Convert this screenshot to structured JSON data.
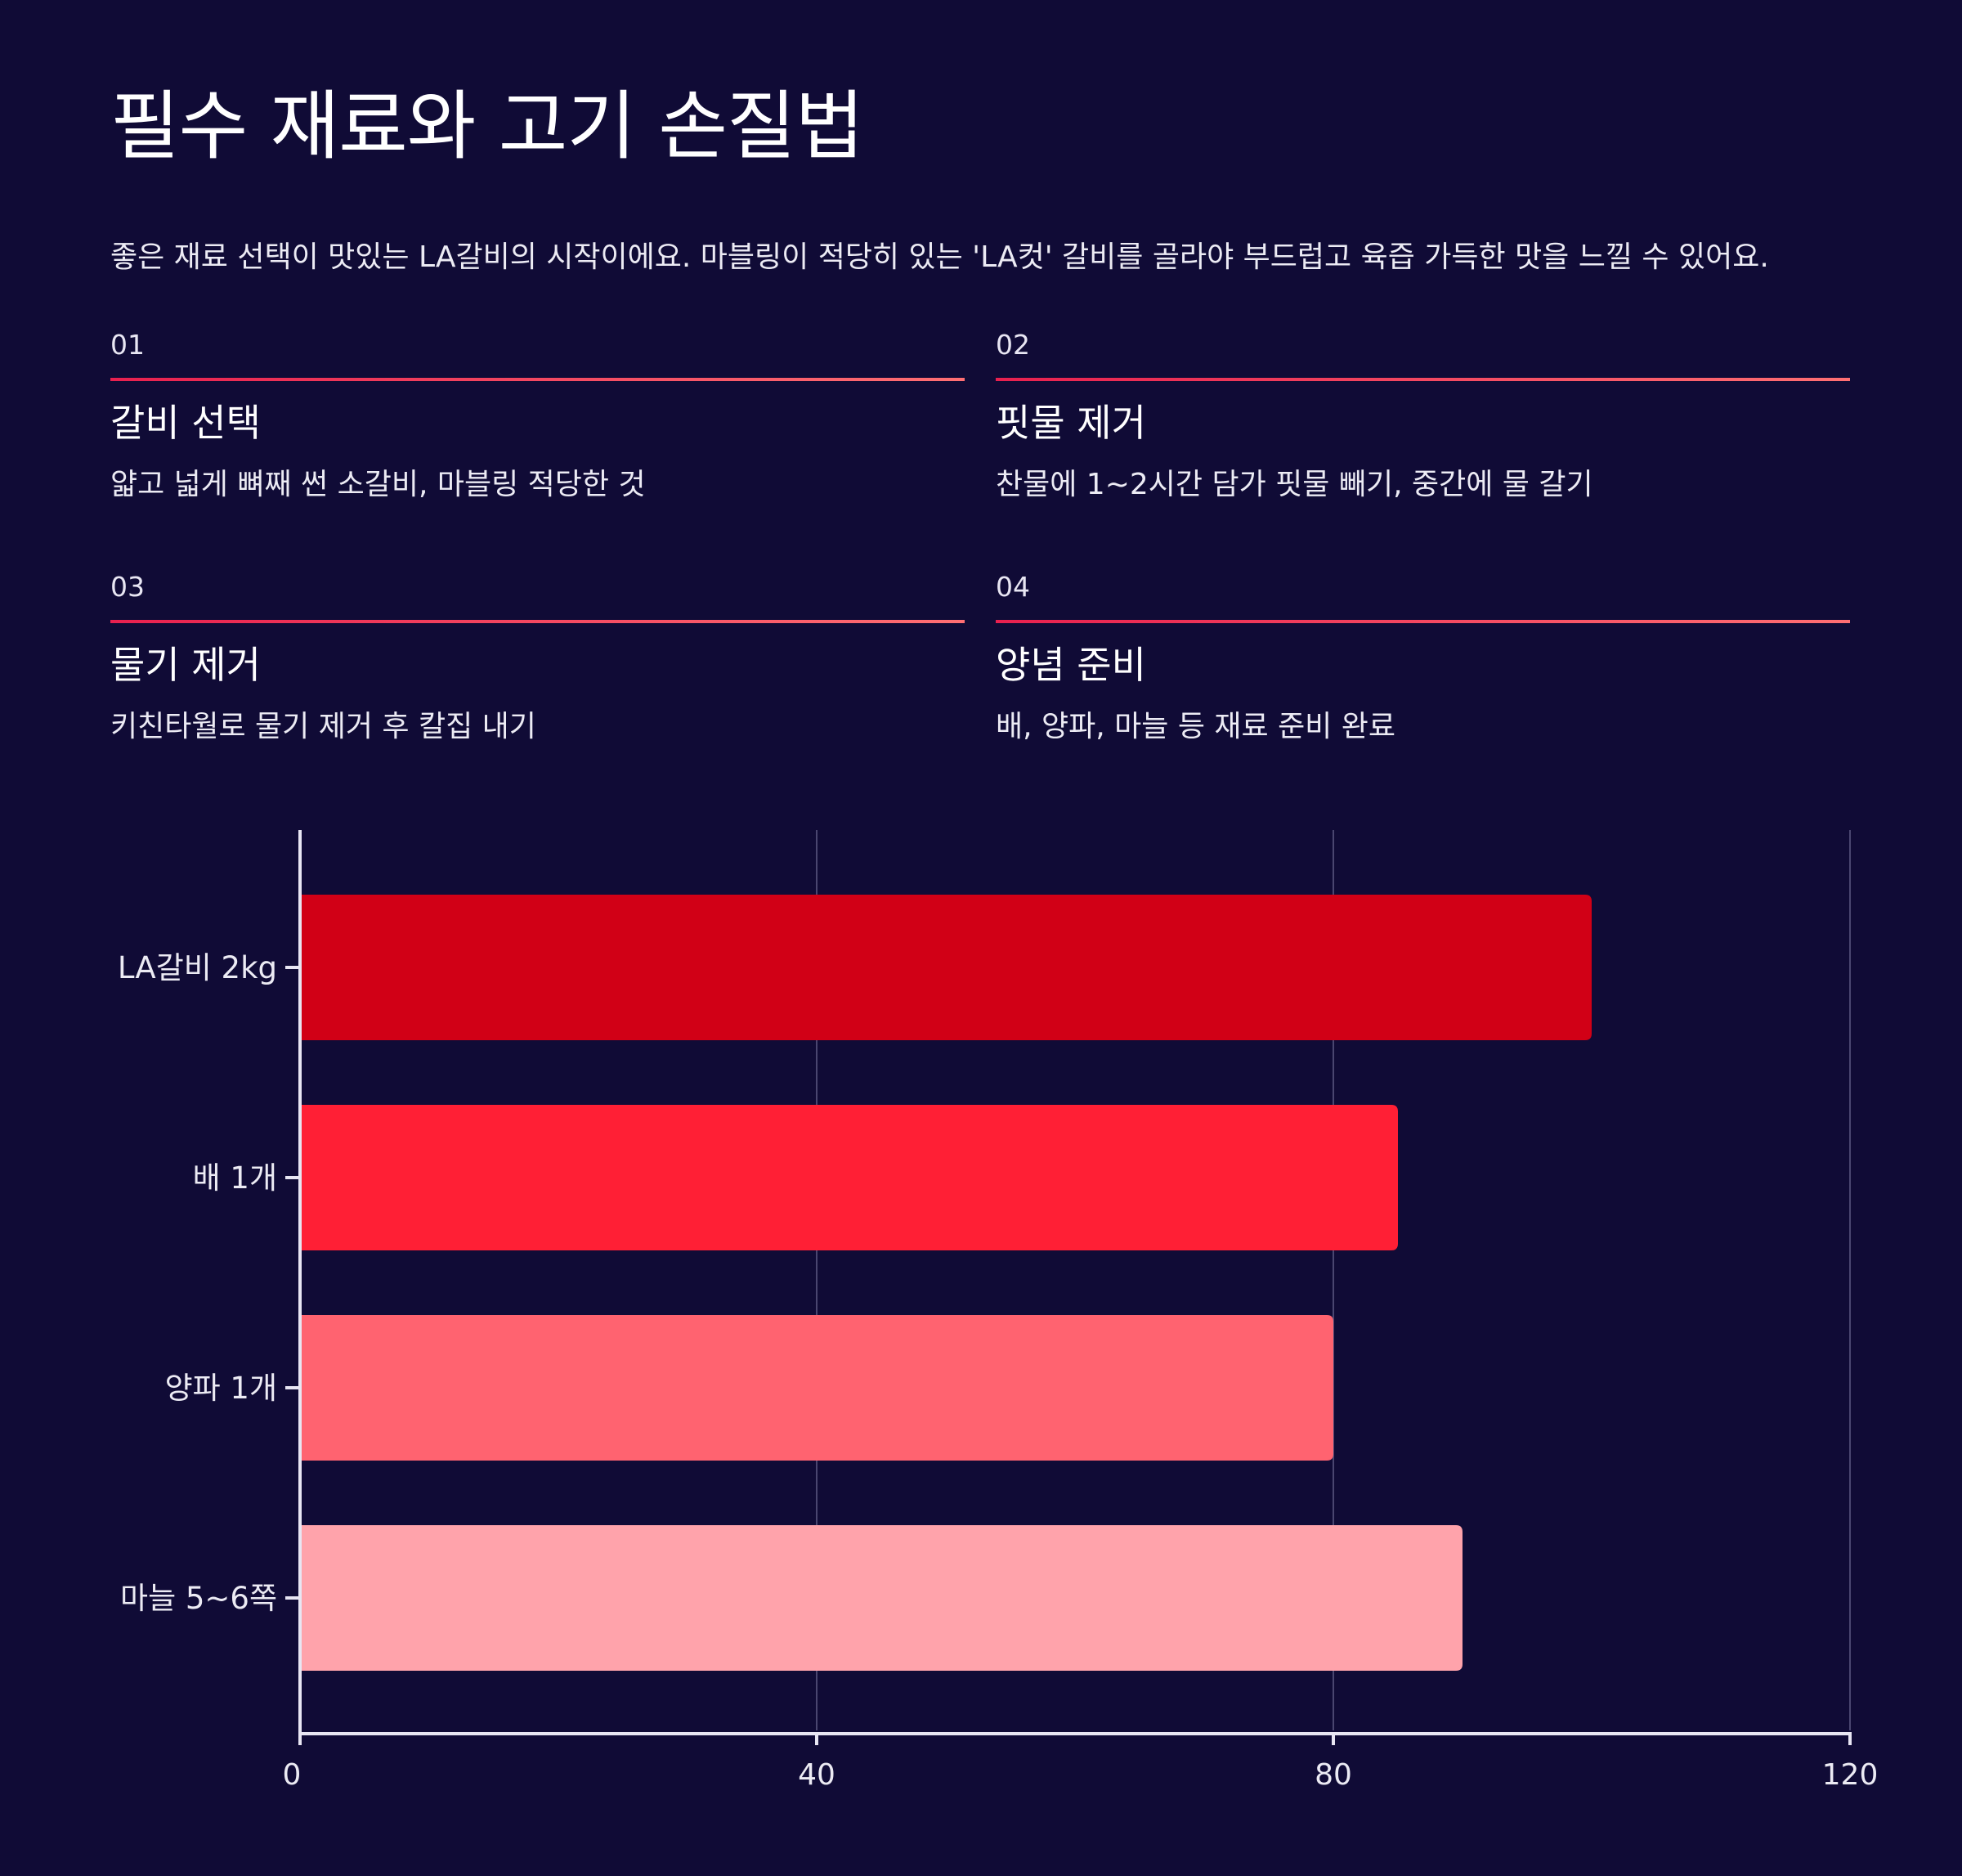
{
  "title": "필수 재료와 고기 손질법",
  "intro": "좋은 재료 선택이 맛있는 LA갈비의 시작이에요. 마블링이 적당히 있는 'LA컷' 갈비를 골라야 부드럽고 육즙 가득한 맛을 느낄 수 있어요.",
  "steps": [
    {
      "num": "01",
      "title": "갈비 선택",
      "desc": "얇고 넓게 뼈째 썬 소갈비, 마블링 적당한 것"
    },
    {
      "num": "02",
      "title": "핏물 제거",
      "desc": "찬물에 1~2시간 담가 핏물 빼기, 중간에 물 갈기"
    },
    {
      "num": "03",
      "title": "물기 제거",
      "desc": "키친타월로 물기 제거 후 칼집 내기"
    },
    {
      "num": "04",
      "title": "양념 준비",
      "desc": "배, 양파, 마늘 등 재료 준비 완료"
    }
  ],
  "chart_data": {
    "type": "bar",
    "orientation": "horizontal",
    "title": "",
    "xlabel": "",
    "ylabel": "",
    "categories": [
      "LA갈비 2kg",
      "배 1개",
      "양파 1개",
      "마늘 5~6쪽"
    ],
    "values": [
      100,
      85,
      80,
      90
    ],
    "colors": [
      "#d10016",
      "#ff1f35",
      "#ff6370",
      "#ffa3ab"
    ],
    "xlim": [
      0,
      120
    ],
    "xticks": [
      "0",
      "40",
      "80",
      "120"
    ],
    "grid": true,
    "legend": "none"
  }
}
